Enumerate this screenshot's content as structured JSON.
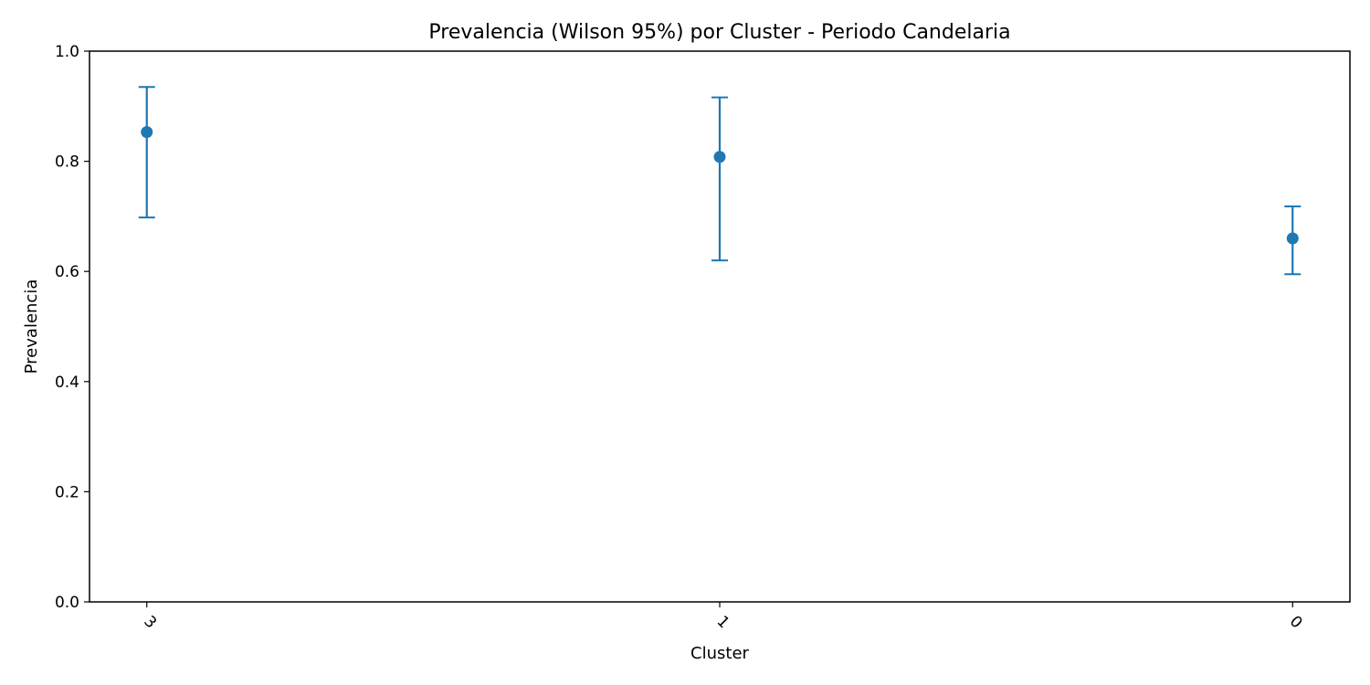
{
  "chart_data": {
    "type": "scatter",
    "title": "Prevalencia (Wilson 95%) por Cluster - Periodo Candelaria",
    "xlabel": "Cluster",
    "ylabel": "Prevalencia",
    "categories": [
      "3",
      "1",
      "0"
    ],
    "values": [
      0.853,
      0.808,
      0.66
    ],
    "ci_lower": [
      0.698,
      0.62,
      0.595
    ],
    "ci_upper": [
      0.935,
      0.916,
      0.718
    ],
    "ylim": [
      0,
      1
    ],
    "yticks": [
      "0.0",
      "0.2",
      "0.4",
      "0.6",
      "0.8",
      "1.0"
    ],
    "x_tick_rotation": 45,
    "color": "#1f77b4",
    "grid": false,
    "legend": "none"
  }
}
